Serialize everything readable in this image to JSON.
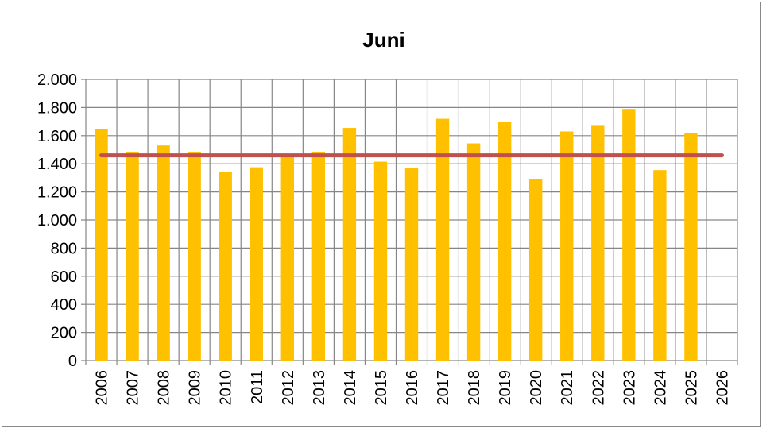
{
  "chart_data": {
    "type": "bar",
    "title": "Juni",
    "xlabel": "",
    "ylabel": "",
    "categories": [
      "2006",
      "2007",
      "2008",
      "2009",
      "2010",
      "2011",
      "2012",
      "2013",
      "2014",
      "2015",
      "2016",
      "2017",
      "2018",
      "2019",
      "2020",
      "2021",
      "2022",
      "2023",
      "2024",
      "2025",
      "2026"
    ],
    "series": [
      {
        "values": [
          1645,
          1480,
          1530,
          1480,
          1340,
          1375,
          1450,
          1480,
          1655,
          1415,
          1370,
          1720,
          1545,
          1700,
          1290,
          1630,
          1670,
          1790,
          1355,
          1620,
          null
        ],
        "color": "#FFC000"
      }
    ],
    "reference_line": {
      "value": 1460,
      "color": "#C0504D"
    },
    "ylim": [
      0,
      2000
    ],
    "yticks": [
      0,
      200,
      400,
      600,
      800,
      1000,
      1200,
      1400,
      1600,
      1800,
      2000
    ],
    "ytick_labels": [
      "0",
      "200",
      "400",
      "600",
      "800",
      "1.000",
      "1.200",
      "1.400",
      "1.600",
      "1.800",
      "2.000"
    ],
    "grid": true,
    "legend": "none"
  }
}
